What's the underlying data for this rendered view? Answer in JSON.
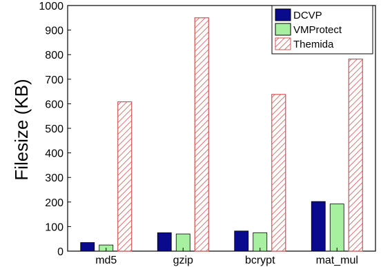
{
  "chart_data": {
    "type": "bar",
    "categories": [
      "md5",
      "gzip",
      "bcrypt",
      "mat_mul"
    ],
    "series": [
      {
        "name": "DCVP",
        "values": [
          35,
          75,
          82,
          202
        ],
        "color": "#0a0a8c",
        "pattern": "solid"
      },
      {
        "name": "VMProtect",
        "values": [
          25,
          70,
          75,
          192
        ],
        "color": "#a6f0a0",
        "pattern": "solid"
      },
      {
        "name": "Themida",
        "values": [
          608,
          950,
          638,
          782
        ],
        "color": "#d45050",
        "pattern": "hatch"
      }
    ],
    "title": "",
    "xlabel": "",
    "ylabel": "Filesize (KB)",
    "ylim": [
      0,
      1000
    ],
    "yticks": [
      0,
      100,
      200,
      300,
      400,
      500,
      600,
      700,
      800,
      900,
      1000
    ],
    "legend_position": "top-right",
    "grid": false
  }
}
